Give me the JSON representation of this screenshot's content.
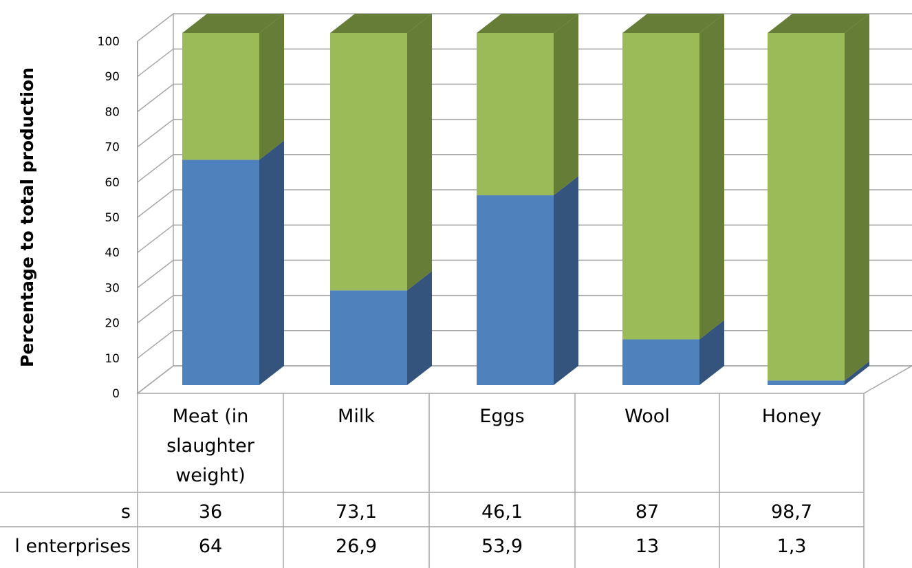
{
  "chart_data": {
    "type": "bar",
    "stacked": true,
    "three_d": true,
    "ylabel": "Percentage to total production",
    "ylim": [
      0,
      100
    ],
    "y_ticks": [
      0,
      10,
      20,
      30,
      40,
      50,
      60,
      70,
      80,
      90,
      100
    ],
    "grid": true,
    "categories": [
      [
        "Meat (in",
        "slaughter",
        "weight)"
      ],
      [
        "Milk"
      ],
      [
        "Eggs"
      ],
      [
        "Wool"
      ],
      [
        "Honey"
      ]
    ],
    "series": [
      {
        "name": "l enterprises",
        "values": [
          64,
          26.9,
          53.9,
          13,
          1.3
        ],
        "labels": [
          "64",
          "26,9",
          "53,9",
          "13",
          "1,3"
        ],
        "color": "#4F81BD",
        "side_color": "#34547D"
      },
      {
        "name": "s",
        "values": [
          36,
          73.1,
          46.1,
          87,
          98.7
        ],
        "labels": [
          "36",
          "73,1",
          "46,1",
          "87",
          "98,7"
        ],
        "color": "#9BBB59",
        "side_color": "#667D37"
      }
    ],
    "colors": {
      "grid": "#A6A6A6",
      "axis": "#8C8C8C",
      "table_border": "#A6A6A6"
    }
  }
}
